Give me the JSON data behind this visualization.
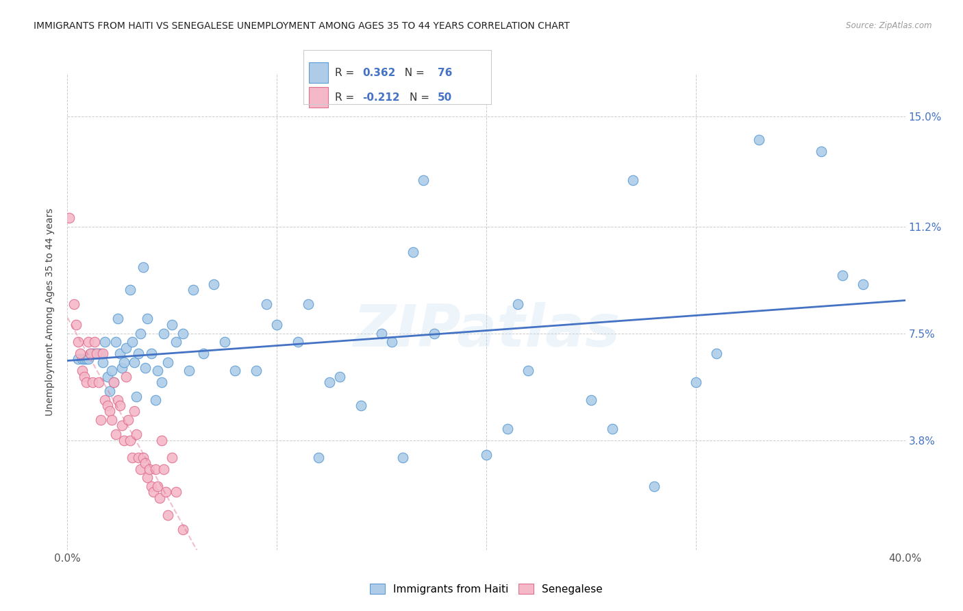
{
  "title": "IMMIGRANTS FROM HAITI VS SENEGALESE UNEMPLOYMENT AMONG AGES 35 TO 44 YEARS CORRELATION CHART",
  "source": "Source: ZipAtlas.com",
  "ylabel": "Unemployment Among Ages 35 to 44 years",
  "xmin": 0.0,
  "xmax": 0.4,
  "ymin": 0.0,
  "ymax": 0.165,
  "yticks": [
    0.038,
    0.075,
    0.112,
    0.15
  ],
  "ytick_labels": [
    "3.8%",
    "7.5%",
    "11.2%",
    "15.0%"
  ],
  "legend_label1": "Immigrants from Haiti",
  "legend_label2": "Senegalese",
  "blue_color": "#aecce8",
  "blue_edge": "#5b9bd5",
  "pink_color": "#f4b8c8",
  "pink_edge": "#e07090",
  "blue_line_color": "#4472c4",
  "pink_line_color": "#e07090",
  "watermark": "ZIPatlas",
  "R_blue_label": "0.362",
  "N_blue_label": "76",
  "R_pink_label": "-0.212",
  "N_pink_label": "50",
  "legend_text_color": "#333333",
  "legend_value_color": "#3366cc",
  "blue_scatter_x": [
    0.005,
    0.007,
    0.008,
    0.009,
    0.01,
    0.011,
    0.012,
    0.013,
    0.014,
    0.015,
    0.016,
    0.017,
    0.018,
    0.019,
    0.02,
    0.021,
    0.022,
    0.023,
    0.024,
    0.025,
    0.026,
    0.027,
    0.028,
    0.03,
    0.031,
    0.032,
    0.033,
    0.034,
    0.035,
    0.036,
    0.037,
    0.038,
    0.04,
    0.042,
    0.043,
    0.045,
    0.046,
    0.048,
    0.05,
    0.052,
    0.055,
    0.058,
    0.06,
    0.065,
    0.07,
    0.075,
    0.08,
    0.09,
    0.095,
    0.1,
    0.11,
    0.115,
    0.12,
    0.125,
    0.13,
    0.14,
    0.15,
    0.155,
    0.16,
    0.165,
    0.17,
    0.175,
    0.2,
    0.21,
    0.215,
    0.22,
    0.25,
    0.26,
    0.27,
    0.28,
    0.3,
    0.31,
    0.33,
    0.36,
    0.37,
    0.38
  ],
  "blue_scatter_y": [
    0.066,
    0.066,
    0.066,
    0.066,
    0.066,
    0.068,
    0.068,
    0.068,
    0.068,
    0.068,
    0.068,
    0.065,
    0.072,
    0.06,
    0.055,
    0.062,
    0.058,
    0.072,
    0.08,
    0.068,
    0.063,
    0.065,
    0.07,
    0.09,
    0.072,
    0.065,
    0.053,
    0.068,
    0.075,
    0.098,
    0.063,
    0.08,
    0.068,
    0.052,
    0.062,
    0.058,
    0.075,
    0.065,
    0.078,
    0.072,
    0.075,
    0.062,
    0.09,
    0.068,
    0.092,
    0.072,
    0.062,
    0.062,
    0.085,
    0.078,
    0.072,
    0.085,
    0.032,
    0.058,
    0.06,
    0.05,
    0.075,
    0.072,
    0.032,
    0.103,
    0.128,
    0.075,
    0.033,
    0.042,
    0.085,
    0.062,
    0.052,
    0.042,
    0.128,
    0.022,
    0.058,
    0.068,
    0.142,
    0.138,
    0.095,
    0.092
  ],
  "pink_scatter_x": [
    0.001,
    0.003,
    0.004,
    0.005,
    0.006,
    0.007,
    0.008,
    0.009,
    0.01,
    0.011,
    0.012,
    0.013,
    0.014,
    0.015,
    0.016,
    0.017,
    0.018,
    0.019,
    0.02,
    0.021,
    0.022,
    0.023,
    0.024,
    0.025,
    0.026,
    0.027,
    0.028,
    0.029,
    0.03,
    0.031,
    0.032,
    0.033,
    0.034,
    0.035,
    0.036,
    0.037,
    0.038,
    0.039,
    0.04,
    0.041,
    0.042,
    0.043,
    0.044,
    0.045,
    0.046,
    0.047,
    0.048,
    0.05,
    0.052,
    0.055
  ],
  "pink_scatter_y": [
    0.115,
    0.085,
    0.078,
    0.072,
    0.068,
    0.062,
    0.06,
    0.058,
    0.072,
    0.068,
    0.058,
    0.072,
    0.068,
    0.058,
    0.045,
    0.068,
    0.052,
    0.05,
    0.048,
    0.045,
    0.058,
    0.04,
    0.052,
    0.05,
    0.043,
    0.038,
    0.06,
    0.045,
    0.038,
    0.032,
    0.048,
    0.04,
    0.032,
    0.028,
    0.032,
    0.03,
    0.025,
    0.028,
    0.022,
    0.02,
    0.028,
    0.022,
    0.018,
    0.038,
    0.028,
    0.02,
    0.012,
    0.032,
    0.02,
    0.007
  ],
  "tick_fontsize": 11
}
